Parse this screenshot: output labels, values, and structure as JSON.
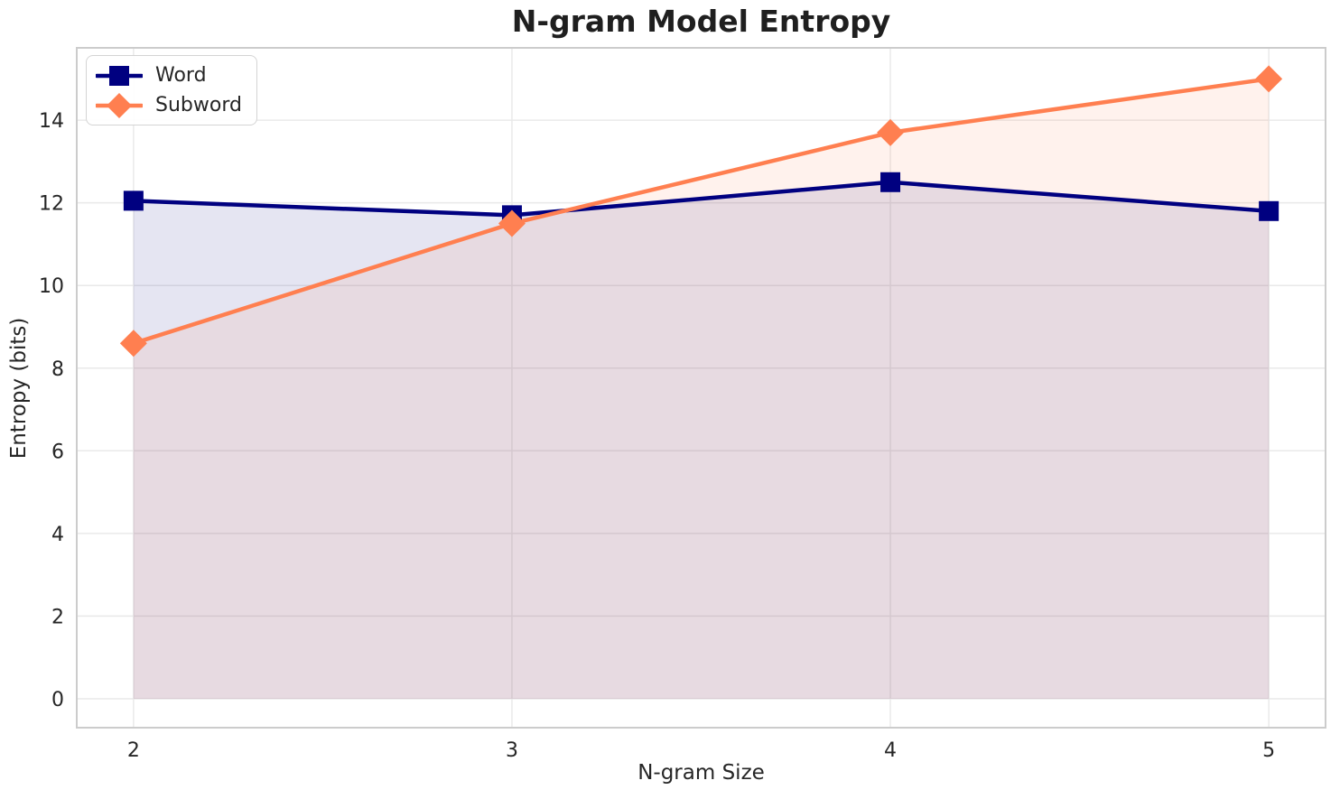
{
  "chart_data": {
    "type": "line",
    "title": "N-gram Model Entropy",
    "xlabel": "N-gram Size",
    "ylabel": "Entropy (bits)",
    "x": [
      2,
      3,
      4,
      5
    ],
    "series": [
      {
        "name": "Word",
        "values": [
          12.05,
          11.7,
          12.5,
          11.8
        ],
        "color": "#000080",
        "marker": "square",
        "fill_to_zero": true,
        "fill_alpha": 0.1
      },
      {
        "name": "Subword",
        "values": [
          8.6,
          11.5,
          13.7,
          15.0
        ],
        "color": "#FF7F50",
        "marker": "diamond",
        "fill_to_zero": true,
        "fill_alpha": 0.1
      }
    ],
    "x_ticks": [
      2,
      3,
      4,
      5
    ],
    "y_ticks": [
      0,
      2,
      4,
      6,
      8,
      10,
      12,
      14
    ],
    "xlim": [
      1.85,
      5.15
    ],
    "ylim": [
      -0.7,
      15.75
    ],
    "grid": true,
    "legend_position": "upper-left",
    "style": {
      "grid_color": "#e9e9e9",
      "spine_color": "#cccccc",
      "tick_color": "#262626",
      "background": "#ffffff",
      "line_width": 4.5,
      "tick_font_size": 22
    }
  }
}
